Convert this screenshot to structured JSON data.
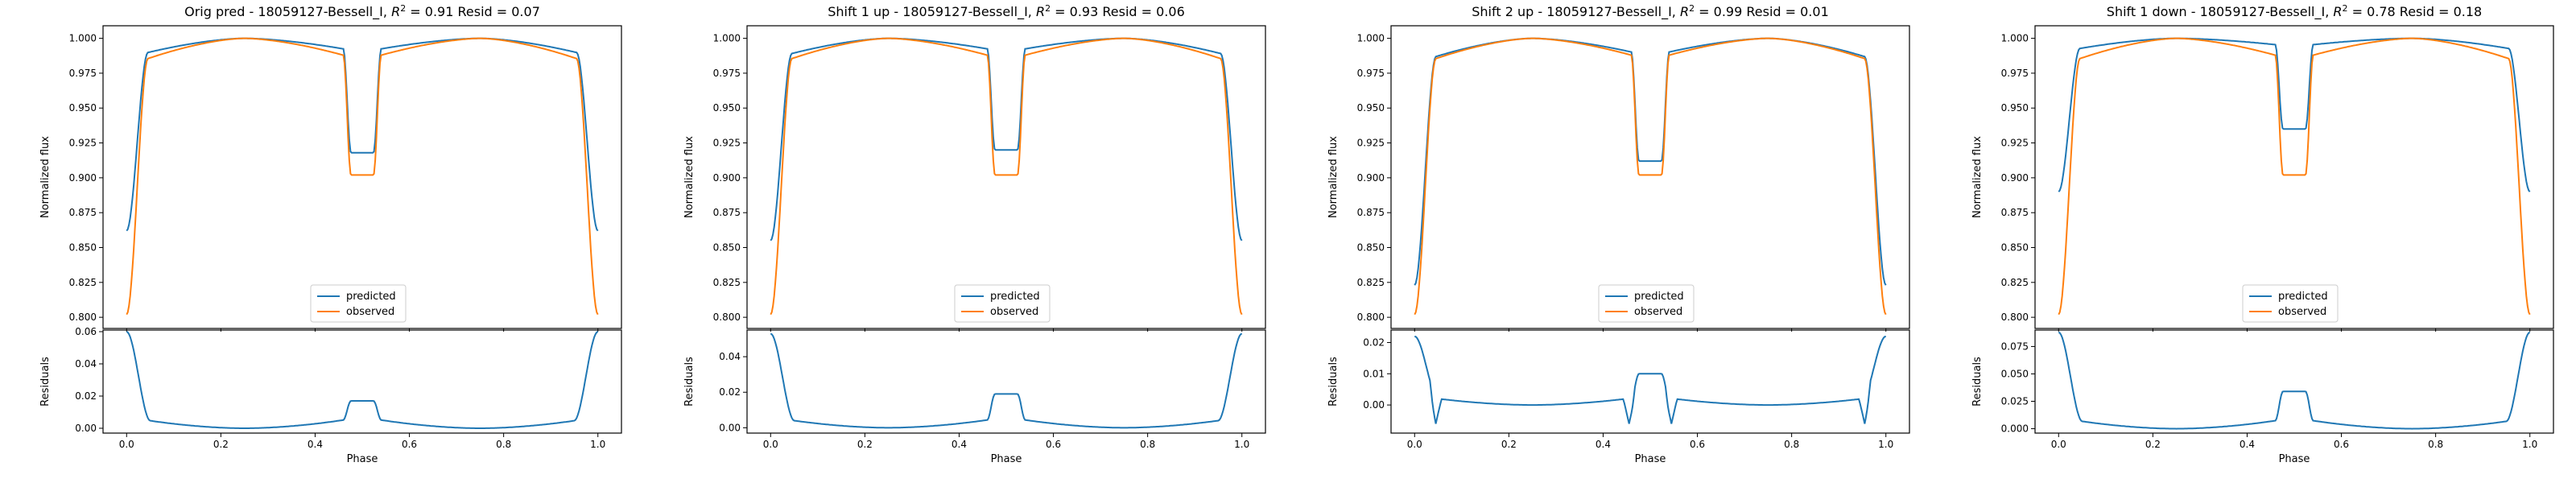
{
  "colors": {
    "predicted": "#1f77b4",
    "observed": "#ff7f0e"
  },
  "chart_data": [
    {
      "type": "line",
      "title": "Orig pred - 18059127-Bessell_I, R² = 0.91 Resid = 0.07",
      "title_prefix": "Orig pred - 18059127-Bessell_I, ",
      "title_r2": " = 0.91 Resid = 0.07",
      "ylabel_top": "Normalized flux",
      "ylabel_bottom": "Residuals",
      "xlabel": "Phase",
      "xlim": [
        -0.05,
        1.05
      ],
      "xticks": [
        "0.0",
        "0.2",
        "0.4",
        "0.6",
        "0.8",
        "1.0"
      ],
      "ylim_top": [
        0.792,
        1.009
      ],
      "yticks_top": [
        "0.800",
        "0.825",
        "0.850",
        "0.875",
        "0.900",
        "0.925",
        "0.950",
        "0.975",
        "1.000"
      ],
      "ylim_bottom": [
        -0.003,
        0.061
      ],
      "yticks_bottom": [
        "0.00",
        "0.02",
        "0.04",
        "0.06"
      ],
      "legend": [
        "predicted",
        "observed"
      ],
      "legend_position": "lower center",
      "predicted": {
        "edge": 0.862,
        "near_edge": 0.986,
        "quad_peak": 1.0,
        "eclipse_min": 0.918,
        "eclipse_shoulder": 0.99
      },
      "observed": {
        "edge": 0.802,
        "near_edge": 0.98,
        "quad_peak": 1.0,
        "eclipse_min": 0.902,
        "eclipse_shoulder": 0.984
      },
      "residuals": {
        "edge": 0.06,
        "near_edge": 0.007,
        "baseline_min": 0.0,
        "eclipse_bump": 0.017
      }
    },
    {
      "type": "line",
      "title": "Shift 1 up - 18059127-Bessell_I, R² = 0.93 Resid = 0.06",
      "title_prefix": "Shift 1 up - 18059127-Bessell_I, ",
      "title_r2": " = 0.93 Resid = 0.06",
      "ylabel_top": "Normalized flux",
      "ylabel_bottom": "Residuals",
      "xlabel": "Phase",
      "xlim": [
        -0.05,
        1.05
      ],
      "xticks": [
        "0.0",
        "0.2",
        "0.4",
        "0.6",
        "0.8",
        "1.0"
      ],
      "ylim_top": [
        0.792,
        1.009
      ],
      "yticks_top": [
        "0.800",
        "0.825",
        "0.850",
        "0.875",
        "0.900",
        "0.925",
        "0.950",
        "0.975",
        "1.000"
      ],
      "ylim_bottom": [
        -0.003,
        0.055
      ],
      "yticks_bottom": [
        "0.00",
        "0.02",
        "0.04"
      ],
      "legend": [
        "predicted",
        "observed"
      ],
      "legend_position": "lower center",
      "predicted": {
        "edge": 0.855,
        "near_edge": 0.985,
        "quad_peak": 1.0,
        "eclipse_min": 0.92,
        "eclipse_shoulder": 0.99
      },
      "observed": {
        "edge": 0.802,
        "near_edge": 0.98,
        "quad_peak": 1.0,
        "eclipse_min": 0.902,
        "eclipse_shoulder": 0.984
      },
      "residuals": {
        "edge": 0.053,
        "near_edge": 0.006,
        "baseline_min": 0.0,
        "eclipse_bump": 0.019
      }
    },
    {
      "type": "line",
      "title": "Shift 2 up - 18059127-Bessell_I, R² = 0.99 Resid = 0.01",
      "title_prefix": "Shift 2 up - 18059127-Bessell_I, ",
      "title_r2": " = 0.99 Resid = 0.01",
      "ylabel_top": "Normalized flux",
      "ylabel_bottom": "Residuals",
      "xlabel": "Phase",
      "xlim": [
        -0.05,
        1.05
      ],
      "xticks": [
        "0.0",
        "0.2",
        "0.4",
        "0.6",
        "0.8",
        "1.0"
      ],
      "ylim_top": [
        0.792,
        1.009
      ],
      "yticks_top": [
        "0.800",
        "0.825",
        "0.850",
        "0.875",
        "0.900",
        "0.925",
        "0.950",
        "0.975",
        "1.000"
      ],
      "ylim_bottom": [
        -0.009,
        0.024
      ],
      "yticks_bottom": [
        "0.00",
        "0.01",
        "0.02"
      ],
      "legend": [
        "predicted",
        "observed"
      ],
      "legend_position": "lower center",
      "predicted": {
        "edge": 0.823,
        "near_edge": 0.982,
        "quad_peak": 1.0,
        "eclipse_min": 0.912,
        "eclipse_shoulder": 0.987
      },
      "observed": {
        "edge": 0.802,
        "near_edge": 0.98,
        "quad_peak": 1.0,
        "eclipse_min": 0.902,
        "eclipse_shoulder": 0.984
      },
      "residuals": {
        "edge": 0.022,
        "near_edge": 0.003,
        "baseline_min": 0.0,
        "eclipse_bump": 0.01,
        "dip": -0.006
      }
    },
    {
      "type": "line",
      "title": "Shift 1 down - 18059127-Bessell_I, R² = 0.78 Resid = 0.18",
      "title_prefix": "Shift 1 down - 18059127-Bessell_I, ",
      "title_r2": " = 0.78 Resid = 0.18",
      "ylabel_top": "Normalized flux",
      "ylabel_bottom": "Residuals",
      "xlabel": "Phase",
      "xlim": [
        -0.05,
        1.05
      ],
      "xticks": [
        "0.0",
        "0.2",
        "0.4",
        "0.6",
        "0.8",
        "1.0"
      ],
      "ylim_top": [
        0.792,
        1.009
      ],
      "yticks_top": [
        "0.800",
        "0.825",
        "0.850",
        "0.875",
        "0.900",
        "0.925",
        "0.950",
        "0.975",
        "1.000"
      ],
      "ylim_bottom": [
        -0.004,
        0.09
      ],
      "yticks_bottom": [
        "0.000",
        "0.025",
        "0.050",
        "0.075"
      ],
      "legend": [
        "predicted",
        "observed"
      ],
      "legend_position": "lower center",
      "predicted": {
        "edge": 0.89,
        "near_edge": 0.99,
        "quad_peak": 1.0,
        "eclipse_min": 0.935,
        "eclipse_shoulder": 0.994
      },
      "observed": {
        "edge": 0.802,
        "near_edge": 0.98,
        "quad_peak": 1.0,
        "eclipse_min": 0.902,
        "eclipse_shoulder": 0.984
      },
      "residuals": {
        "edge": 0.088,
        "near_edge": 0.01,
        "baseline_min": 0.0,
        "eclipse_bump": 0.034
      }
    }
  ]
}
